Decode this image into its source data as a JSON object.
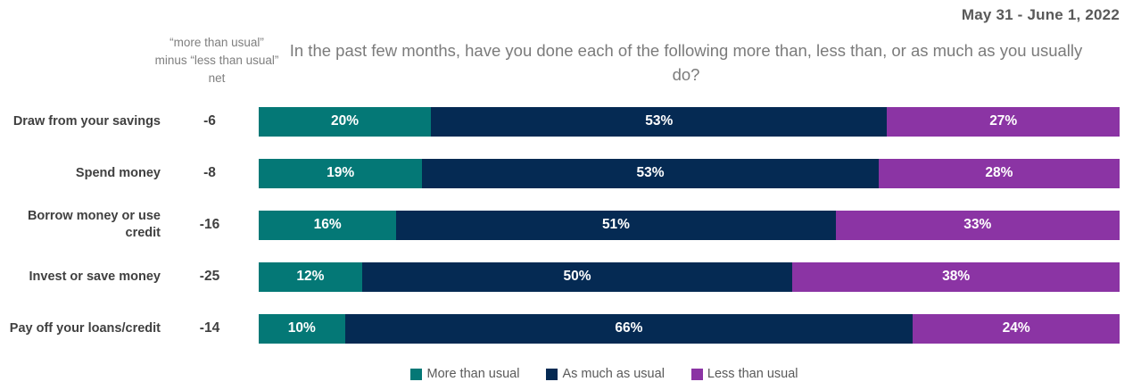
{
  "meta": {
    "date_label": "May 31 - June 1, 2022"
  },
  "header": {
    "net_column_label": "“more than usual” minus “less than usual” net",
    "title": "In the past few months, have you done each of the following more than, less than, or as much as you usually do?"
  },
  "chart_data": {
    "type": "bar",
    "subtype": "stacked-horizontal",
    "title": "In the past few months, have you done each of the following more than, less than, or as much as you usually do?",
    "date_annotation": "May 31 - June 1, 2022",
    "net_column_header": "“more than usual” minus “less than usual” net",
    "categories": [
      "Draw from your savings",
      "Spend money",
      "Borrow money or use credit",
      "Invest or save money",
      "Pay off your loans/credit"
    ],
    "net_values": [
      -6,
      -8,
      -16,
      -25,
      -14
    ],
    "series": [
      {
        "name": "More than usual",
        "color": "#047876",
        "values": [
          20,
          19,
          16,
          12,
          10
        ]
      },
      {
        "name": "As much as usual",
        "color": "#052a53",
        "values": [
          53,
          53,
          51,
          50,
          66
        ]
      },
      {
        "name": "Less than usual",
        "color": "#8b34a4",
        "values": [
          27,
          28,
          33,
          38,
          24
        ]
      }
    ],
    "value_suffix": "%",
    "xlim": [
      0,
      100
    ],
    "grid": false,
    "legend_position": "bottom",
    "bar_label_color": "#ffffff"
  },
  "legend": {
    "items": [
      {
        "label": "More than usual",
        "color": "#047876"
      },
      {
        "label": "As much as usual",
        "color": "#052a53"
      },
      {
        "label": "Less than usual",
        "color": "#8b34a4"
      }
    ]
  }
}
